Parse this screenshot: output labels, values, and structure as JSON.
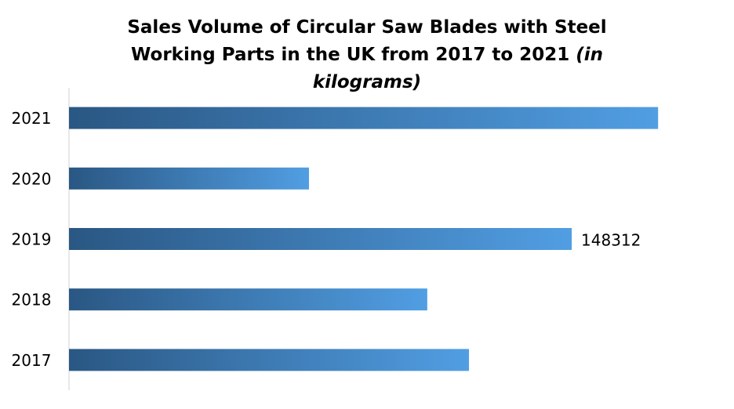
{
  "chart_data": {
    "type": "hbar",
    "title": "Sales Volume of Circular Saw Blades with Steel Working Parts in the UK from 2017 to 2021",
    "unit": "(in kilograms)",
    "categories": [
      "2017",
      "2018",
      "2019",
      "2020",
      "2021"
    ],
    "values": [
      118000,
      105700,
      148312,
      70800,
      173800
    ],
    "value_labels": [
      null,
      null,
      "148312",
      null,
      null
    ],
    "gradient": [
      "#2a5783",
      "#519ee3"
    ],
    "xlim": [
      0,
      180000
    ]
  }
}
